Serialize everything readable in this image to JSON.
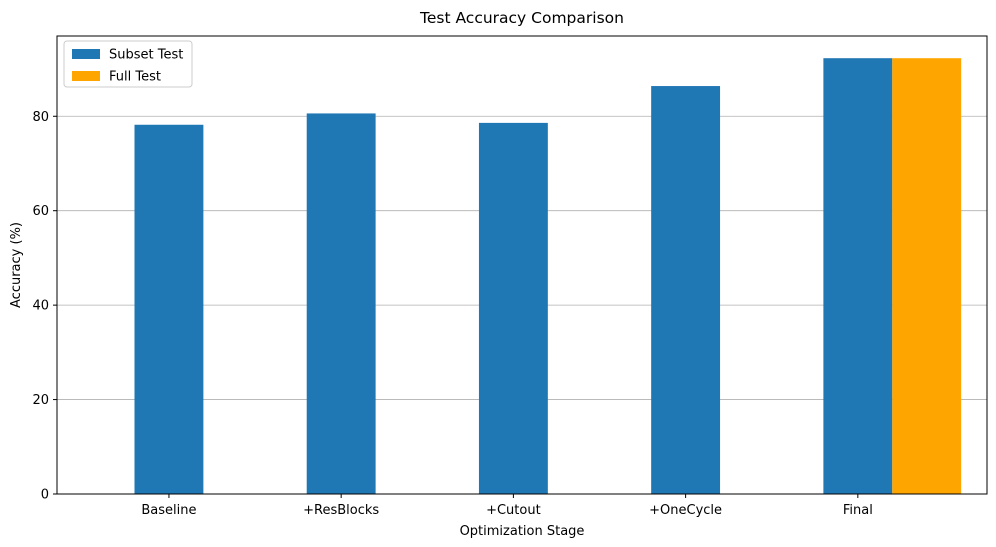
{
  "chart_data": {
    "type": "bar",
    "title": "Test Accuracy Comparison",
    "xlabel": "Optimization Stage",
    "ylabel": "Accuracy (%)",
    "categories": [
      "Baseline",
      "+ResBlocks",
      "+Cutout",
      "+OneCycle",
      "Final"
    ],
    "series": [
      {
        "name": "Subset Test",
        "color": "#1f77b4",
        "values": [
          78.2,
          80.6,
          78.6,
          86.4,
          92.3
        ]
      },
      {
        "name": "Full Test",
        "color": "#ffa500",
        "values": [
          null,
          null,
          null,
          null,
          92.3
        ]
      }
    ],
    "ylim": [
      0,
      97
    ],
    "yticks": [
      0,
      20,
      40,
      60,
      80
    ],
    "grid": "horizontal",
    "legend_position": "top-left"
  }
}
